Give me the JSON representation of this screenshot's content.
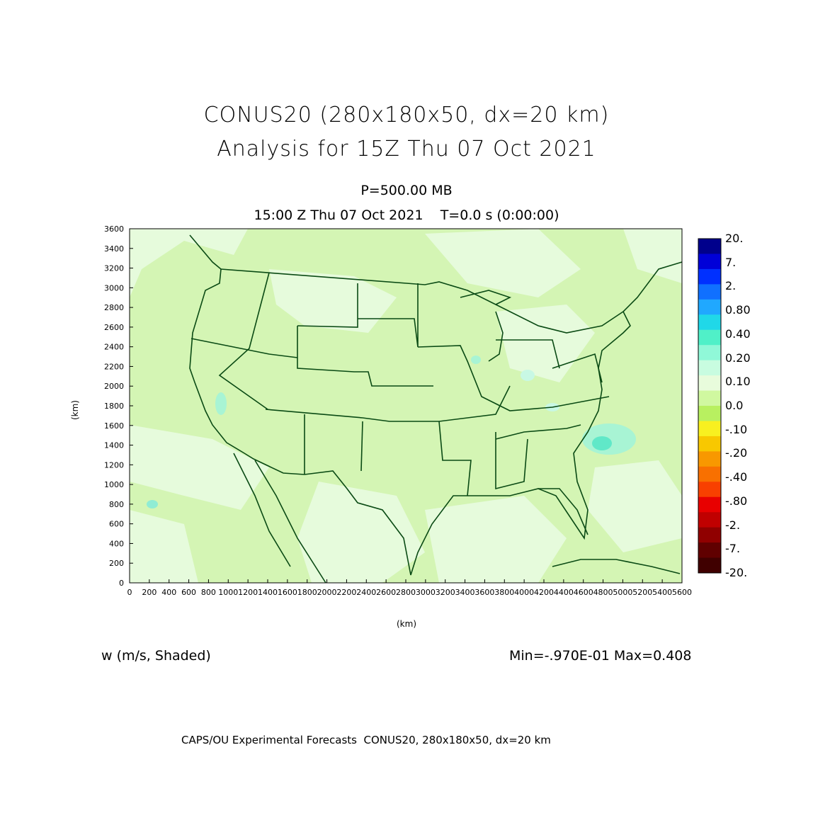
{
  "title_line1": "CONUS20 (280x180x50, dx=20 km)",
  "title_line2": "Analysis for 15Z Thu 07 Oct 2021",
  "level": "P=500.00 MB",
  "time_line": "15:00 Z Thu 07 Oct 2021    T=0.0 s (0:00:00)",
  "xlabel": "(km)",
  "ylabel": "(km)",
  "variable_label": "w (m/s, Shaded)",
  "minmax": "Min=-.970E-01 Max=0.408",
  "footer": "CAPS/OU Experimental Forecasts  CONUS20, 280x180x50, dx=20 km",
  "colors": {
    "background_field": "#d4f5b4",
    "light_field": "#e6fbdc",
    "outline": "#0a4a14"
  },
  "chart_data": {
    "type": "heatmap",
    "xlim": [
      0,
      5600
    ],
    "ylim": [
      0,
      3600
    ],
    "x_ticks": [
      "0",
      "200",
      "400",
      "600",
      "800",
      "1000",
      "1200",
      "1400",
      "1600",
      "1800",
      "2000",
      "2200",
      "2400",
      "2600",
      "2800",
      "3000",
      "3200",
      "3400",
      "3600",
      "3800",
      "4000",
      "4200",
      "4400",
      "4600",
      "4800",
      "5000",
      "5200",
      "5400",
      "5600"
    ],
    "y_ticks": [
      "0",
      "200",
      "400",
      "600",
      "800",
      "1000",
      "1200",
      "1400",
      "1600",
      "1800",
      "2000",
      "2200",
      "2400",
      "2600",
      "2800",
      "3000",
      "3200",
      "3400",
      "3600"
    ],
    "colorbar": {
      "labels": [
        "20.",
        "7.",
        "2.",
        "0.80",
        "0.40",
        "0.20",
        "0.10",
        "0.0",
        "-.10",
        "-.20",
        "-.40",
        "-.80",
        "-2.",
        "-7.",
        "-20."
      ],
      "colors": [
        "#00008c",
        "#0000d8",
        "#0030ff",
        "#1070ff",
        "#20a8ff",
        "#20d8e8",
        "#50f0c8",
        "#90f8d8",
        "#c8fce0",
        "#e8fcdc",
        "#d0f8a0",
        "#b8f060",
        "#f8f020",
        "#f8c800",
        "#f89800",
        "#f87000",
        "#f84000",
        "#e80000",
        "#c00000",
        "#900000",
        "#600000",
        "#400000"
      ]
    },
    "min": -0.097,
    "max": 0.408
  }
}
